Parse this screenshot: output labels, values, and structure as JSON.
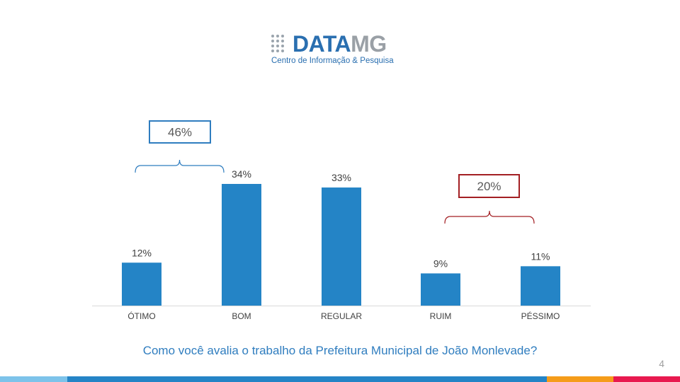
{
  "logo": {
    "word_primary": "DATA",
    "word_secondary": "MG",
    "subtitle": "Centro de Informação & Pesquisa"
  },
  "chart_data": {
    "type": "bar",
    "categories": [
      "ÓTIMO",
      "BOM",
      "REGULAR",
      "RUIM",
      "PÉSSIMO"
    ],
    "values": [
      12,
      34,
      33,
      9,
      11
    ],
    "value_labels": [
      "12%",
      "34%",
      "33%",
      "9%",
      "11%"
    ],
    "ylim": [
      0,
      34
    ],
    "bar_color": "#2484c6",
    "annotations": [
      {
        "label": "46%",
        "spans": [
          "ÓTIMO",
          "BOM"
        ],
        "color": "#2f7dbf"
      },
      {
        "label": "20%",
        "spans": [
          "RUIM",
          "PÉSSIMO"
        ],
        "color": "#a31f23"
      }
    ]
  },
  "question": "Como você avalia o trabalho da Prefeitura Municipal de João Monlevade?",
  "page_number": "4",
  "footer_colors": [
    "#7dc3ea",
    "#2484c6",
    "#f59c1a",
    "#e8194f"
  ]
}
